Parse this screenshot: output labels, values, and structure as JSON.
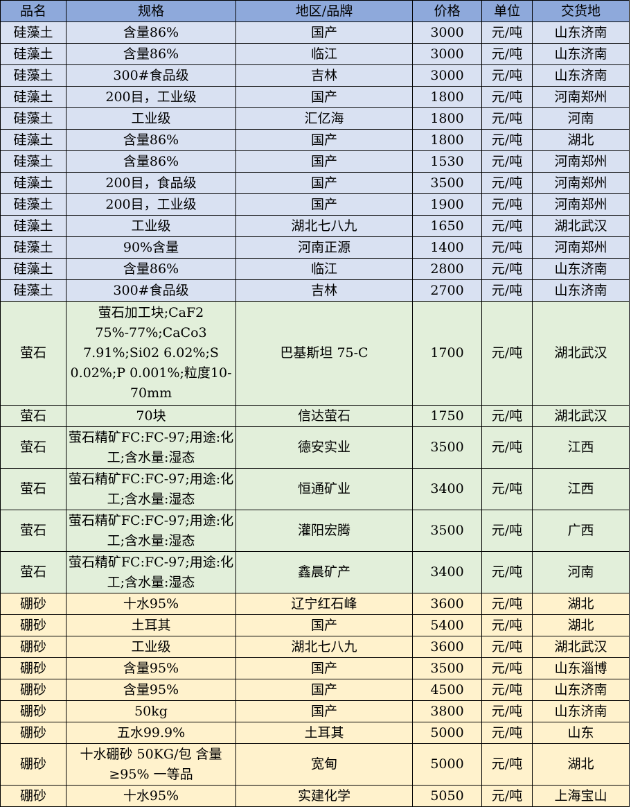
{
  "headers": [
    "品名",
    "规格",
    "地区/品牌",
    "价格",
    "单位",
    "交货地"
  ],
  "colors": {
    "header": "#8EA9DB",
    "diatomite": "#D9E1F2",
    "fluorite": "#E2EFDA",
    "borax": "#FFF2CC"
  },
  "rows": [
    {
      "g": 0,
      "h": 1,
      "c": [
        "硅藻土",
        "含量86%",
        "国产",
        "3000",
        "元/吨",
        "山东济南"
      ]
    },
    {
      "g": 0,
      "h": 1,
      "c": [
        "硅藻土",
        "含量86%",
        "临江",
        "3000",
        "元/吨",
        "山东济南"
      ]
    },
    {
      "g": 0,
      "h": 1,
      "c": [
        "硅藻土",
        "300#食品级",
        "吉林",
        "3000",
        "元/吨",
        "山东济南"
      ]
    },
    {
      "g": 0,
      "h": 1,
      "c": [
        "硅藻土",
        "200目，工业级",
        "国产",
        "1800",
        "元/吨",
        "河南郑州"
      ]
    },
    {
      "g": 0,
      "h": 1,
      "c": [
        "硅藻土",
        "工业级",
        "汇亿海",
        "1800",
        "元/吨",
        "河南"
      ]
    },
    {
      "g": 0,
      "h": 1,
      "c": [
        "硅藻土",
        "含量86%",
        "国产",
        "1800",
        "元/吨",
        "湖北"
      ]
    },
    {
      "g": 0,
      "h": 1,
      "c": [
        "硅藻土",
        "含量86%",
        "国产",
        "1530",
        "元/吨",
        "河南郑州"
      ]
    },
    {
      "g": 0,
      "h": 1,
      "c": [
        "硅藻土",
        "200目，食品级",
        "国产",
        "3500",
        "元/吨",
        "河南郑州"
      ]
    },
    {
      "g": 0,
      "h": 1,
      "c": [
        "硅藻土",
        "200目，工业级",
        "国产",
        "1900",
        "元/吨",
        "河南郑州"
      ]
    },
    {
      "g": 0,
      "h": 1,
      "c": [
        "硅藻土",
        "工业级",
        "湖北七八九",
        "1650",
        "元/吨",
        "湖北武汉"
      ]
    },
    {
      "g": 0,
      "h": 1,
      "c": [
        "硅藻土",
        "90%含量",
        "河南正源",
        "1400",
        "元/吨",
        "河南郑州"
      ]
    },
    {
      "g": 0,
      "h": 1,
      "c": [
        "硅藻土",
        "含量86%",
        "临江",
        "2800",
        "元/吨",
        "山东济南"
      ]
    },
    {
      "g": 0,
      "h": 1,
      "c": [
        "硅藻土",
        "300#食品级",
        "吉林",
        "2700",
        "元/吨",
        "山东济南"
      ]
    },
    {
      "g": 1,
      "h": 5,
      "c": [
        "萤石",
        "萤石加工块;CaF2 75%-77%;CaCo3 7.91%;Si02 6.02%;S 0.02%;P 0.001%;粒度10-70mm",
        "巴基斯坦 75-C",
        "1700",
        "元/吨",
        "湖北武汉"
      ]
    },
    {
      "g": 1,
      "h": 1,
      "c": [
        "萤石",
        "70块",
        "信达萤石",
        "1750",
        "元/吨",
        "湖北武汉"
      ]
    },
    {
      "g": 1,
      "h": 2,
      "c": [
        "萤石",
        "萤石精矿FC:FC-97;用途:化工;含水量:湿态",
        "德安实业",
        "3500",
        "元/吨",
        "江西"
      ]
    },
    {
      "g": 1,
      "h": 2,
      "c": [
        "萤石",
        "萤石精矿FC:FC-97;用途:化工;含水量:湿态",
        "恒通矿业",
        "3400",
        "元/吨",
        "江西"
      ]
    },
    {
      "g": 1,
      "h": 2,
      "c": [
        "萤石",
        "萤石精矿FC:FC-97;用途:化工;含水量:湿态",
        "灌阳宏腾",
        "3500",
        "元/吨",
        "广西"
      ]
    },
    {
      "g": 1,
      "h": 2,
      "c": [
        "萤石",
        "萤石精矿FC:FC-97;用途:化工;含水量:湿态",
        "鑫晨矿产",
        "3400",
        "元/吨",
        "河南"
      ]
    },
    {
      "g": 2,
      "h": 1,
      "c": [
        "硼砂",
        "十水95%",
        "辽宁红石峰",
        "3600",
        "元/吨",
        "湖北"
      ]
    },
    {
      "g": 2,
      "h": 1,
      "c": [
        "硼砂",
        "土耳其",
        "国产",
        "5400",
        "元/吨",
        "湖北"
      ]
    },
    {
      "g": 2,
      "h": 1,
      "c": [
        "硼砂",
        "工业级",
        "湖北七八九",
        "3600",
        "元/吨",
        "湖北武汉"
      ]
    },
    {
      "g": 2,
      "h": 1,
      "c": [
        "硼砂",
        "含量95%",
        "国产",
        "3500",
        "元/吨",
        "山东淄博"
      ]
    },
    {
      "g": 2,
      "h": 1,
      "c": [
        "硼砂",
        "含量95%",
        "国产",
        "4500",
        "元/吨",
        "山东济南"
      ]
    },
    {
      "g": 2,
      "h": 1,
      "c": [
        "硼砂",
        "50kg",
        "国产",
        "3800",
        "元/吨",
        "山东济南"
      ]
    },
    {
      "g": 2,
      "h": 1,
      "c": [
        "硼砂",
        "五水99.9%",
        "土耳其",
        "5000",
        "元/吨",
        "山东"
      ]
    },
    {
      "g": 2,
      "h": 2,
      "c": [
        "硼砂",
        "十水硼砂 50KG/包 含量≥95% 一等品",
        "宽甸",
        "5000",
        "元/吨",
        "湖北"
      ]
    },
    {
      "g": 2,
      "h": 1,
      "c": [
        "硼砂",
        "十水95%",
        "实建化学",
        "5050",
        "元/吨",
        "上海宝山"
      ]
    }
  ]
}
